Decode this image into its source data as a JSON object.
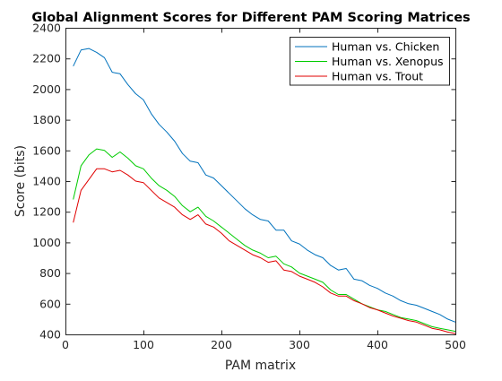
{
  "chart_data": {
    "type": "line",
    "title": "Global Alignment Scores for Different PAM Scoring Matrices",
    "xlabel": "PAM matrix",
    "ylabel": "Score (bits)",
    "xlim": [
      0,
      500
    ],
    "ylim": [
      400,
      2400
    ],
    "xticks": [
      0,
      100,
      200,
      300,
      400,
      500
    ],
    "yticks": [
      400,
      600,
      800,
      1000,
      1200,
      1400,
      1600,
      1800,
      2000,
      2200,
      2400
    ],
    "grid": false,
    "legend_position": "top-right",
    "x": [
      10,
      20,
      30,
      40,
      50,
      60,
      70,
      80,
      90,
      100,
      110,
      120,
      130,
      140,
      150,
      160,
      170,
      180,
      190,
      200,
      210,
      220,
      230,
      240,
      250,
      260,
      270,
      280,
      290,
      300,
      310,
      320,
      330,
      340,
      350,
      360,
      370,
      380,
      390,
      400,
      410,
      420,
      430,
      440,
      450,
      460,
      470,
      480,
      490,
      500
    ],
    "series": [
      {
        "name": "Human vs. Chicken",
        "color": "#0072BD",
        "values": [
          2150,
          2255,
          2265,
          2240,
          2205,
          2110,
          2100,
          2030,
          1970,
          1930,
          1840,
          1770,
          1720,
          1660,
          1580,
          1530,
          1520,
          1440,
          1420,
          1370,
          1320,
          1270,
          1220,
          1180,
          1150,
          1140,
          1080,
          1080,
          1010,
          990,
          950,
          920,
          900,
          850,
          820,
          830,
          760,
          750,
          720,
          700,
          670,
          650,
          620,
          600,
          590,
          570,
          550,
          530,
          500,
          480
        ]
      },
      {
        "name": "Human vs. Xenopus",
        "color": "#00CC00",
        "values": [
          1280,
          1500,
          1570,
          1610,
          1600,
          1555,
          1590,
          1550,
          1500,
          1480,
          1420,
          1370,
          1340,
          1300,
          1240,
          1200,
          1230,
          1170,
          1140,
          1100,
          1060,
          1020,
          980,
          950,
          930,
          900,
          910,
          860,
          840,
          800,
          780,
          760,
          740,
          690,
          660,
          660,
          630,
          600,
          580,
          560,
          550,
          530,
          510,
          500,
          490,
          470,
          450,
          440,
          430,
          420
        ]
      },
      {
        "name": "Human vs. Trout",
        "color": "#E00000",
        "values": [
          1130,
          1340,
          1410,
          1480,
          1480,
          1460,
          1470,
          1440,
          1400,
          1390,
          1340,
          1290,
          1260,
          1230,
          1180,
          1150,
          1180,
          1120,
          1100,
          1060,
          1010,
          980,
          950,
          920,
          900,
          870,
          880,
          820,
          810,
          780,
          760,
          740,
          710,
          670,
          650,
          650,
          620,
          600,
          575,
          560,
          540,
          520,
          505,
          490,
          480,
          460,
          440,
          430,
          415,
          405
        ]
      }
    ]
  }
}
